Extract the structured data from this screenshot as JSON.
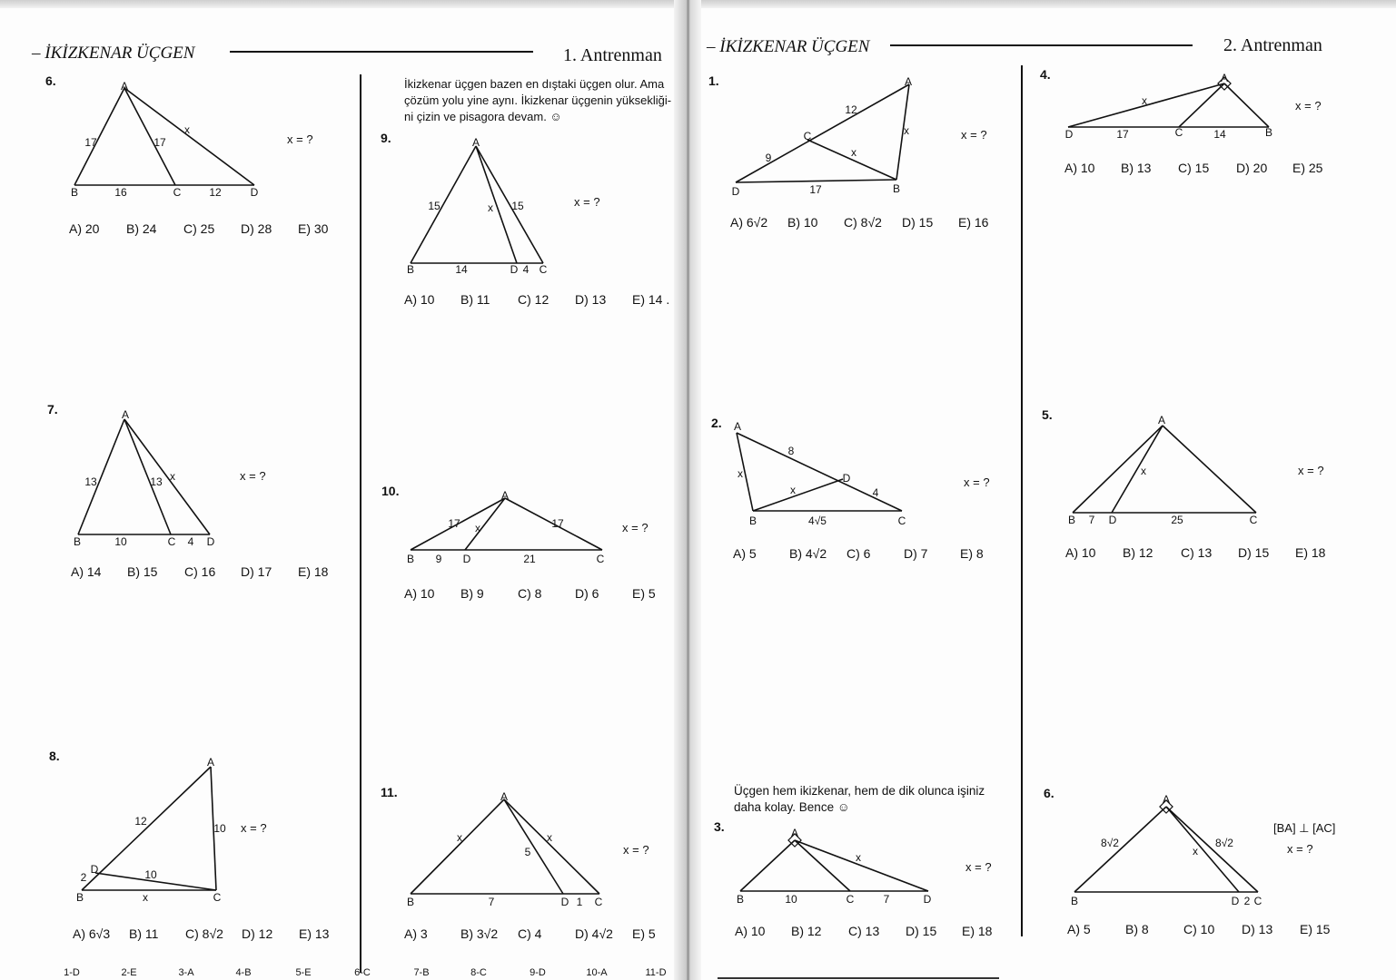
{
  "left_page": {
    "header": {
      "title": "– İKİZKENAR ÜÇGEN",
      "section": "1. Antrenman"
    },
    "note_q9": [
      "İkizkenar üçgen bazen en dıştaki üçgen olur. Ama",
      "çözüm yolu yine aynı. İkizkenar üçgenin yüksekliği-",
      "ni çizin ve pisagora devam. ☺"
    ],
    "answer_key": [
      "1-D",
      "2-E",
      "3-A",
      "4-B",
      "5-E",
      "6-C",
      "7-B",
      "8-C",
      "9-D",
      "10-A",
      "11-D"
    ]
  },
  "right_page": {
    "header": {
      "title": "– İKİZKENAR ÜÇGEN",
      "section": "2. Antrenman"
    },
    "note_q3": [
      "Üçgen hem ikizkenar, hem de dik olunca işiniz",
      "daha kolay. Bence ☺"
    ],
    "q6_condition": "[BA] ⊥ [AC]"
  },
  "questions": {
    "L6": {
      "number": "6.",
      "labels": [
        "A",
        "17",
        "17",
        "x",
        "B",
        "16",
        "C",
        "12",
        "D"
      ],
      "prompt": "x = ?",
      "options": [
        "A) 20",
        "B) 24",
        "C) 25",
        "D) 28",
        "E) 30"
      ]
    },
    "L7": {
      "number": "7.",
      "labels": [
        "A",
        "13",
        "13",
        "x",
        "B",
        "10",
        "C",
        "4",
        "D"
      ],
      "prompt": "x = ?",
      "options": [
        "A) 14",
        "B) 15",
        "C) 16",
        "D) 17",
        "E) 18"
      ]
    },
    "L8": {
      "number": "8.",
      "labels": [
        "A",
        "12",
        "10",
        "D",
        "2",
        "10",
        "B",
        "x",
        "C"
      ],
      "prompt": "x = ?",
      "options": [
        "A) 6√3",
        "B) 11",
        "C) 8√2",
        "D) 12",
        "E) 13"
      ]
    },
    "L9": {
      "number": "9.",
      "labels": [
        "A",
        "15",
        "x",
        "15",
        "B",
        "14",
        "D",
        "4",
        "C"
      ],
      "prompt": "x = ?",
      "options": [
        "A) 10",
        "B) 11",
        "C) 12",
        "D) 13",
        "E) 14 ."
      ]
    },
    "L10": {
      "number": "10.",
      "labels": [
        "A",
        "17",
        "x",
        "17",
        "B",
        "9",
        "D",
        "21",
        "C"
      ],
      "prompt": "x = ?",
      "options": [
        "A) 10",
        "B) 9",
        "C) 8",
        "D) 6",
        "E) 5"
      ]
    },
    "L11": {
      "number": "11.",
      "labels": [
        "A",
        "x",
        "5",
        "x",
        "B",
        "7",
        "D",
        "1",
        "C"
      ],
      "prompt": "x = ?",
      "options": [
        "A) 3",
        "B) 3√2",
        "C) 4",
        "D) 4√2",
        "E) 5"
      ]
    },
    "R1": {
      "number": "1.",
      "labels": [
        "A",
        "12",
        "x",
        "x",
        "C",
        "9",
        "17",
        "D",
        "B"
      ],
      "prompt": "x = ?",
      "options": [
        "A) 6√2",
        "B) 10",
        "C) 8√2",
        "D) 15",
        "E) 16"
      ]
    },
    "R2": {
      "number": "2.",
      "labels": [
        "A",
        "8",
        "x",
        "D",
        "4",
        "x",
        "B",
        "4√5",
        "C"
      ],
      "prompt": "x = ?",
      "options": [
        "A) 5",
        "B) 4√2",
        "C) 6",
        "D) 7",
        "E) 8"
      ]
    },
    "R3": {
      "number": "3.",
      "labels": [
        "A",
        "x",
        "B",
        "10",
        "C",
        "7",
        "D"
      ],
      "prompt": "x = ?",
      "options": [
        "A) 10",
        "B) 12",
        "C) 13",
        "D) 15",
        "E) 18"
      ]
    },
    "R4": {
      "number": "4.",
      "labels": [
        "A",
        "x",
        "D",
        "17",
        "C",
        "14",
        "B"
      ],
      "prompt": "x = ?",
      "options": [
        "A) 10",
        "B) 13",
        "C) 15",
        "D) 20",
        "E) 25"
      ]
    },
    "R5": {
      "number": "5.",
      "labels": [
        "A",
        "x",
        "B",
        "7",
        "D",
        "25",
        "C"
      ],
      "prompt": "x = ?",
      "options": [
        "A) 10",
        "B) 12",
        "C) 13",
        "D) 15",
        "E) 18"
      ]
    },
    "R6": {
      "number": "6.",
      "labels": [
        "A",
        "8√2",
        "x",
        "8√2",
        "B",
        "D",
        "2",
        "C"
      ],
      "prompt": "x = ?",
      "options": [
        "A) 5",
        "B) 8",
        "C) 10",
        "D) 13",
        "E) 15"
      ]
    }
  }
}
